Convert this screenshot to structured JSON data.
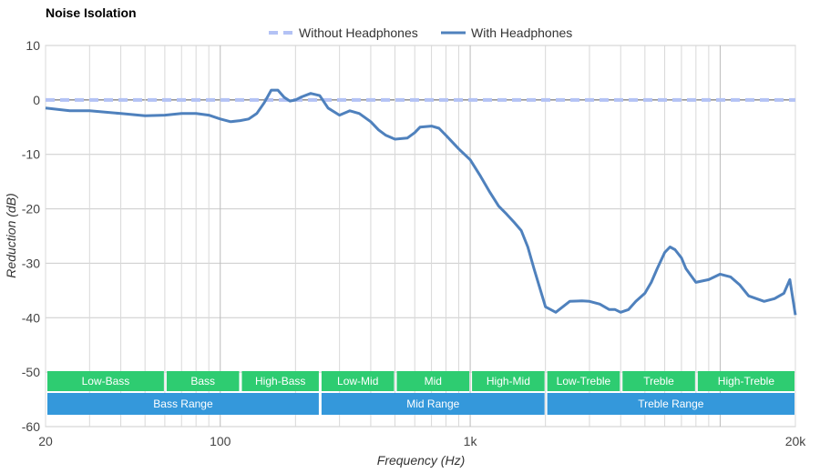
{
  "chart_data": {
    "type": "line",
    "title": "Noise Isolation",
    "xlabel": "Frequency (Hz)",
    "ylabel": "Reduction (dB)",
    "x_scale": "log",
    "xlim": [
      20,
      20000
    ],
    "ylim": [
      -60,
      10
    ],
    "x_ticks": [
      {
        "value": 20,
        "label": "20"
      },
      {
        "value": 100,
        "label": "100"
      },
      {
        "value": 1000,
        "label": "1k"
      },
      {
        "value": 20000,
        "label": "20k"
      }
    ],
    "y_ticks": [
      10,
      0,
      -10,
      -20,
      -30,
      -40,
      -50,
      -60
    ],
    "legend": "top-center",
    "grid": true,
    "series": [
      {
        "name": "Without Headphones",
        "color": "#b3c2f5",
        "style": "dashed",
        "x": [
          20,
          20000
        ],
        "y": [
          0,
          0
        ]
      },
      {
        "name": "With Headphones",
        "color": "#4f81bd",
        "style": "solid",
        "x": [
          20,
          25,
          30,
          40,
          50,
          60,
          70,
          80,
          90,
          100,
          110,
          120,
          130,
          140,
          150,
          160,
          170,
          180,
          190,
          200,
          210,
          230,
          250,
          270,
          300,
          330,
          360,
          400,
          430,
          460,
          500,
          560,
          600,
          630,
          700,
          750,
          800,
          900,
          1000,
          1100,
          1200,
          1300,
          1400,
          1500,
          1600,
          1700,
          1800,
          2000,
          2200,
          2500,
          2800,
          3000,
          3300,
          3600,
          3800,
          4000,
          4300,
          4600,
          5000,
          5300,
          5600,
          6000,
          6300,
          6600,
          7000,
          7300,
          8000,
          9000,
          10000,
          11000,
          12000,
          13000,
          15000,
          16500,
          18000,
          19000,
          20000
        ],
        "y": [
          -1.5,
          -2,
          -2,
          -2.5,
          -2.9,
          -2.8,
          -2.5,
          -2.5,
          -2.8,
          -3.5,
          -4,
          -3.8,
          -3.5,
          -2.5,
          -0.5,
          1.8,
          1.8,
          0.5,
          -0.2,
          0,
          0.5,
          1.2,
          0.8,
          -1.5,
          -2.8,
          -2,
          -2.5,
          -4,
          -5.5,
          -6.5,
          -7.2,
          -7,
          -6,
          -5,
          -4.8,
          -5.2,
          -6.5,
          -9,
          -11,
          -14,
          -17,
          -19.5,
          -21,
          -22.5,
          -24,
          -27,
          -31,
          -38,
          -39,
          -37,
          -36.9,
          -37,
          -37.5,
          -38.5,
          -38.5,
          -39,
          -38.5,
          -37,
          -35.5,
          -33.5,
          -31,
          -28,
          -27,
          -27.5,
          -29,
          -31,
          -33.5,
          -33,
          -32,
          -32.5,
          -34,
          -36,
          -37,
          -36.5,
          -35.5,
          -33,
          -39.5
        ]
      }
    ],
    "bands": {
      "rows": [
        {
          "color": "#2ecc71",
          "items": [
            {
              "label": "Low-Bass",
              "from": 20,
              "to": 60
            },
            {
              "label": "Bass",
              "from": 60,
              "to": 120
            },
            {
              "label": "High-Bass",
              "from": 120,
              "to": 250
            },
            {
              "label": "Low-Mid",
              "from": 250,
              "to": 500
            },
            {
              "label": "Mid",
              "from": 500,
              "to": 1000
            },
            {
              "label": "High-Mid",
              "from": 1000,
              "to": 2000
            },
            {
              "label": "Low-Treble",
              "from": 2000,
              "to": 4000
            },
            {
              "label": "Treble",
              "from": 4000,
              "to": 8000
            },
            {
              "label": "High-Treble",
              "from": 8000,
              "to": 20000
            }
          ]
        },
        {
          "color": "#3498db",
          "items": [
            {
              "label": "Bass Range",
              "from": 20,
              "to": 250
            },
            {
              "label": "Mid Range",
              "from": 250,
              "to": 2000
            },
            {
              "label": "Treble Range",
              "from": 2000,
              "to": 20000
            }
          ]
        }
      ]
    }
  }
}
